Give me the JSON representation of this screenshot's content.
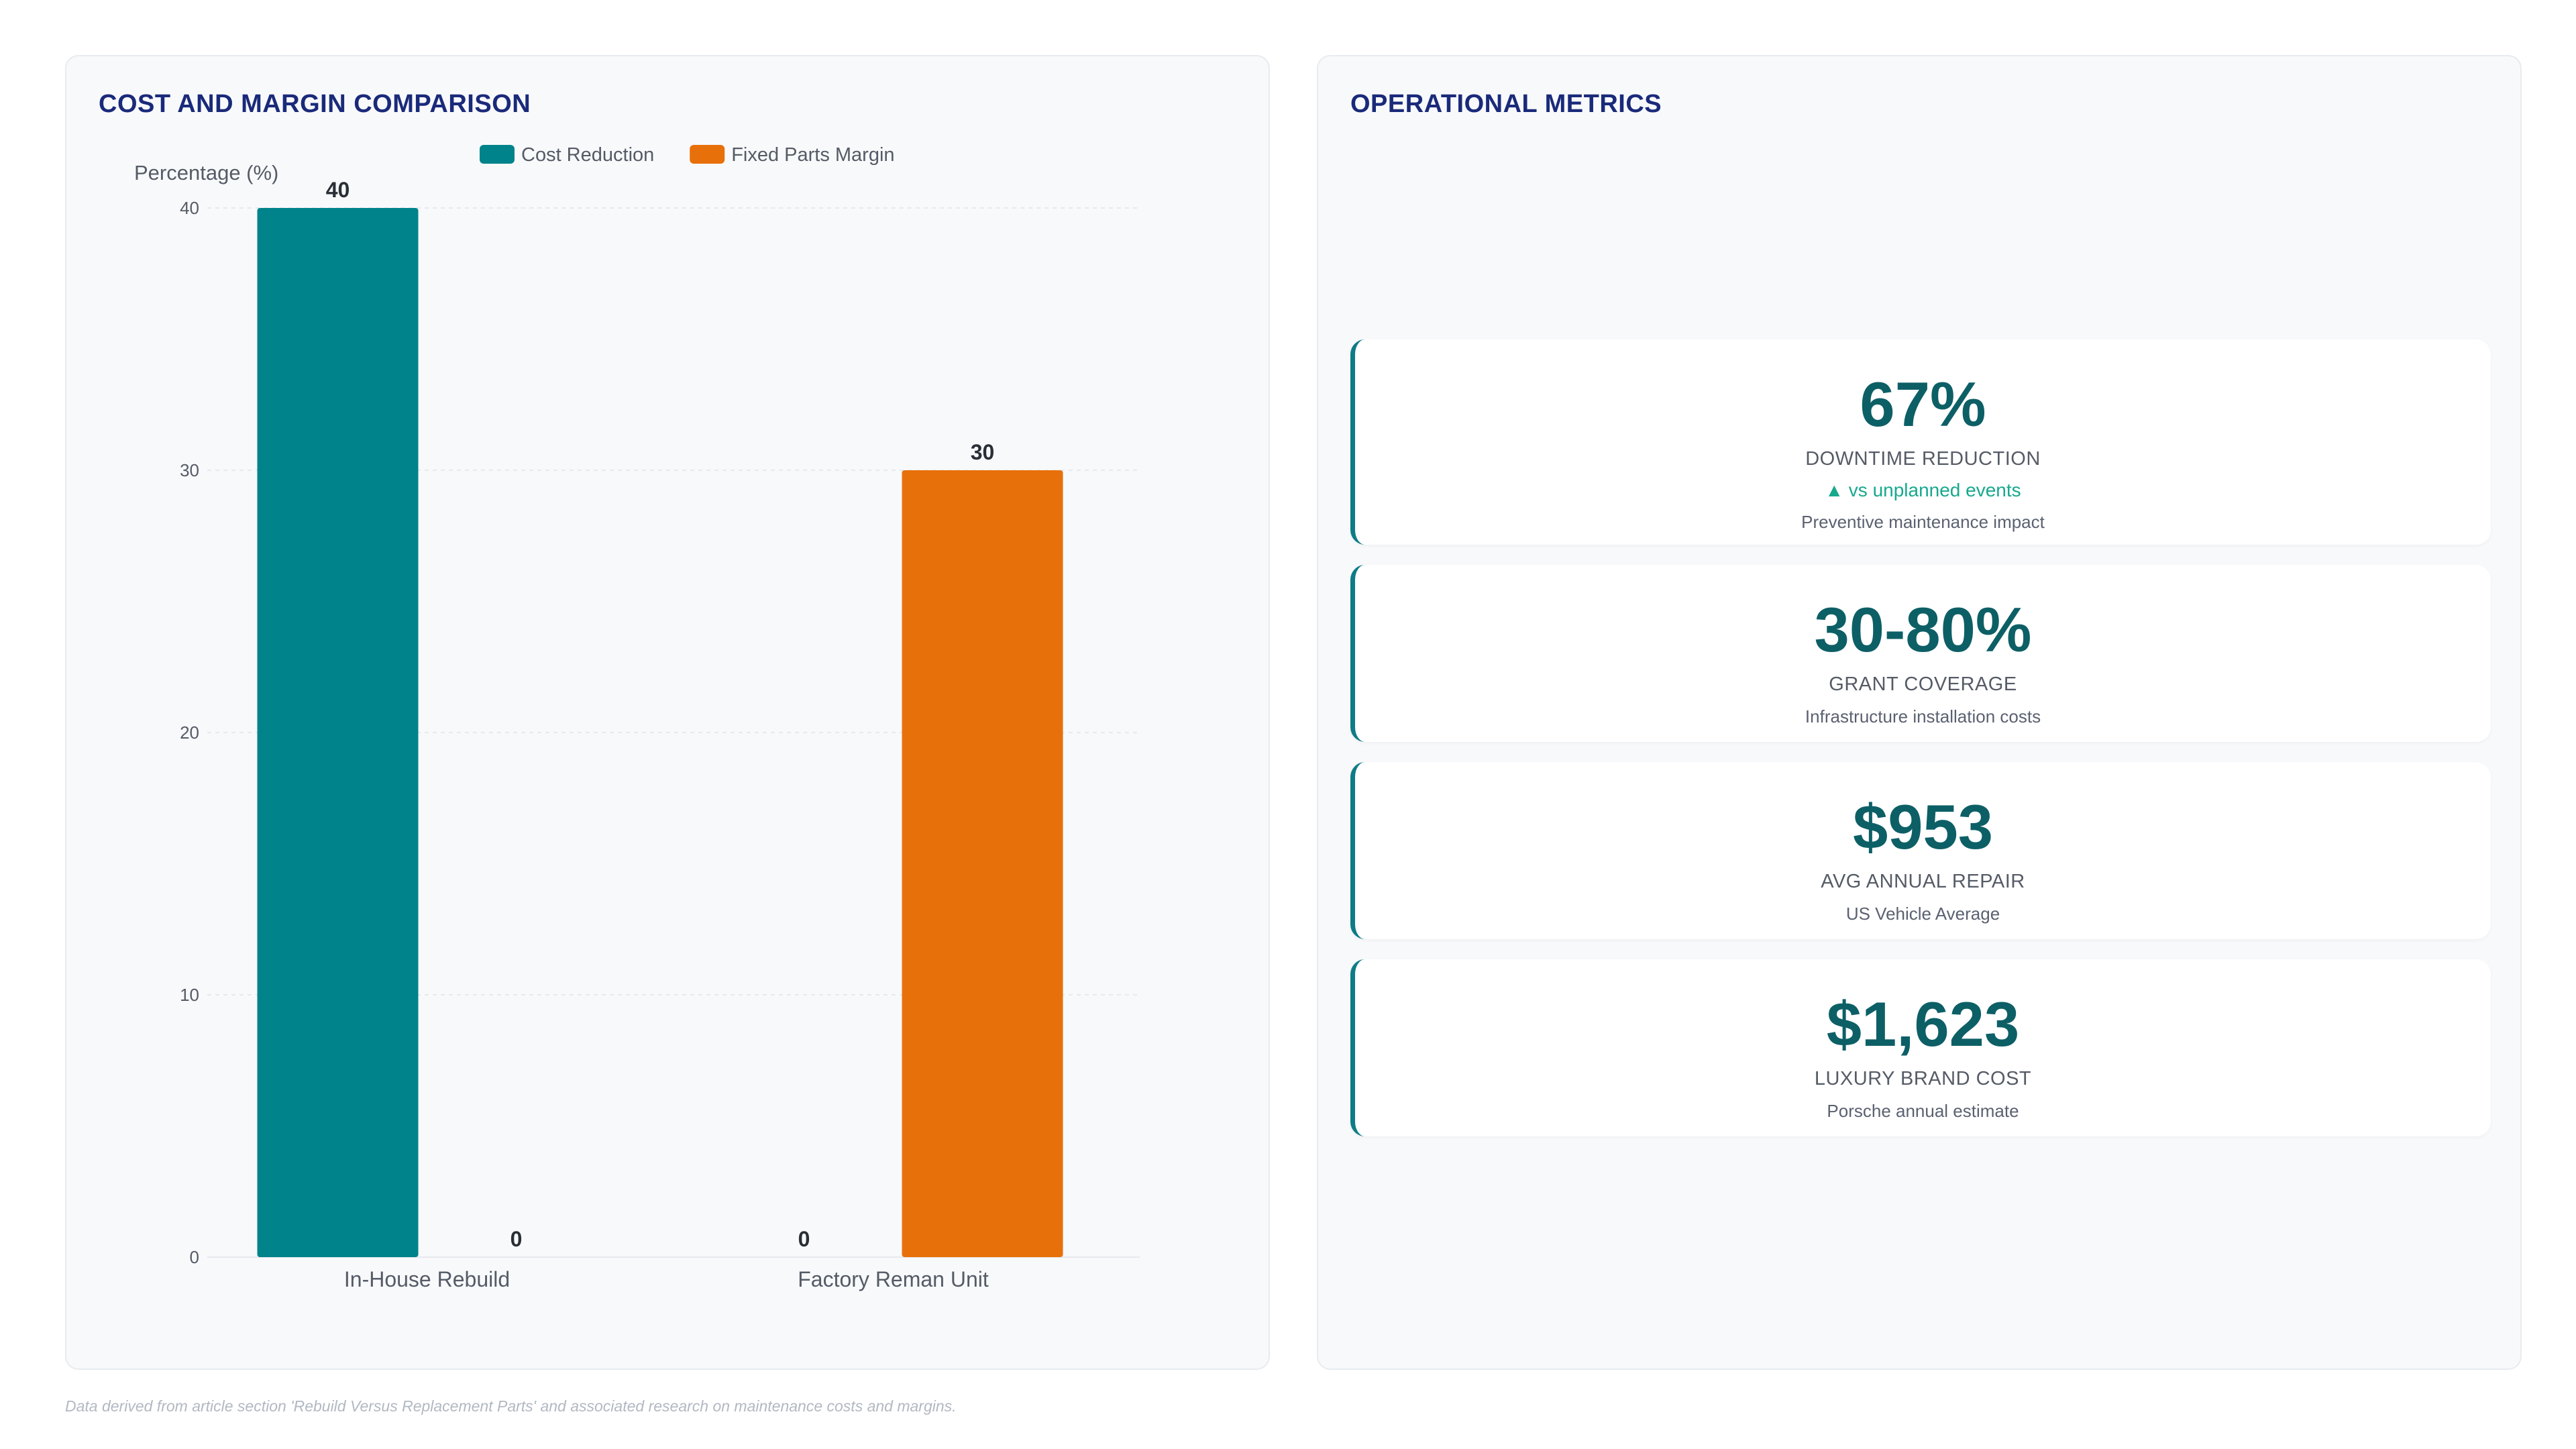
{
  "left_panel": {
    "title": "COST AND MARGIN COMPARISON"
  },
  "right_panel": {
    "title": "OPERATIONAL METRICS",
    "metrics": [
      {
        "value": "67%",
        "label": "DOWNTIME REDUCTION",
        "trend": "▲ vs unplanned events",
        "description": "Preventive maintenance impact"
      },
      {
        "value": "30-80%",
        "label": "GRANT COVERAGE",
        "description": "Infrastructure installation costs"
      },
      {
        "value": "$953",
        "label": "AVG ANNUAL REPAIR",
        "description": "US Vehicle Average"
      },
      {
        "value": "$1,623",
        "label": "LUXURY BRAND COST",
        "description": "Porsche annual estimate"
      }
    ]
  },
  "footer": {
    "note": "Data derived from article section 'Rebuild Versus Replacement Parts' and associated research on maintenance costs and margins."
  },
  "chart_data": {
    "type": "bar",
    "title": "COST AND MARGIN COMPARISON",
    "ylabel": "Percentage (%)",
    "xlabel": "",
    "categories": [
      "In-House Rebuild",
      "Factory Reman Unit"
    ],
    "series": [
      {
        "name": "Cost Reduction",
        "color": "#00838a",
        "values": [
          40,
          0
        ]
      },
      {
        "name": "Fixed Parts Margin",
        "color": "#e8700a",
        "values": [
          0,
          30
        ]
      }
    ],
    "ylim": [
      0,
      40
    ],
    "yticks": [
      0,
      10,
      20,
      30,
      40
    ],
    "grid": true,
    "legend": "top-center",
    "data_labels": true
  }
}
